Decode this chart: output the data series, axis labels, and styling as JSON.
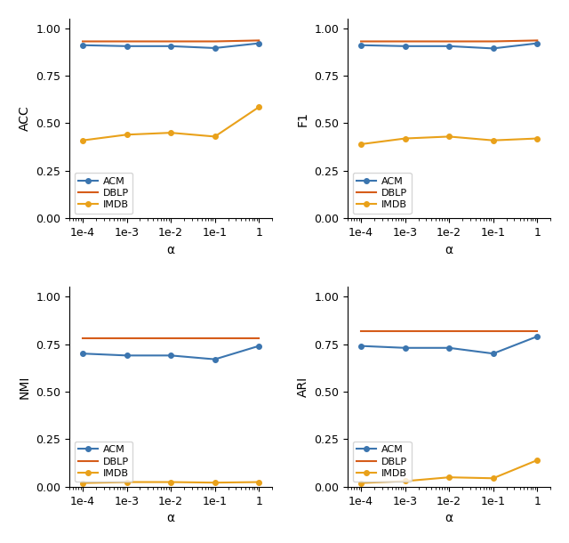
{
  "x_labels": [
    "1e-4",
    "1e-3",
    "1e-2",
    "1e-1",
    "1"
  ],
  "x_values": [
    0.0001,
    0.001,
    0.01,
    0.1,
    1
  ],
  "ACC": {
    "ACM": [
      0.91,
      0.905,
      0.905,
      0.895,
      0.92
    ],
    "DBLP": [
      0.93,
      0.93,
      0.93,
      0.93,
      0.935
    ],
    "IMDB": [
      0.41,
      0.44,
      0.45,
      0.43,
      0.585
    ]
  },
  "F1": {
    "ACM": [
      0.91,
      0.905,
      0.905,
      0.893,
      0.92
    ],
    "DBLP": [
      0.93,
      0.93,
      0.93,
      0.93,
      0.935
    ],
    "IMDB": [
      0.39,
      0.42,
      0.43,
      0.41,
      0.42
    ]
  },
  "NMI": {
    "ACM": [
      0.7,
      0.69,
      0.69,
      0.67,
      0.74
    ],
    "DBLP": [
      0.78,
      0.78,
      0.78,
      0.78,
      0.78
    ],
    "IMDB": [
      0.02,
      0.025,
      0.025,
      0.022,
      0.025
    ]
  },
  "ARI": {
    "ACM": [
      0.74,
      0.73,
      0.73,
      0.7,
      0.79
    ],
    "DBLP": [
      0.82,
      0.82,
      0.82,
      0.82,
      0.82
    ],
    "IMDB": [
      0.02,
      0.03,
      0.05,
      0.045,
      0.14
    ]
  },
  "colors": {
    "ACM": "#3b75af",
    "DBLP": "#d55c19",
    "IMDB": "#e9a11a"
  },
  "marker": {
    "ACM": "o",
    "DBLP": "none",
    "IMDB": "o"
  },
  "ylim": [
    0,
    1.05
  ],
  "yticks": [
    0,
    0.25,
    0.5,
    0.75,
    1
  ],
  "xlabel": "α",
  "ylabel_ACC": "ACC",
  "ylabel_F1": "F1",
  "ylabel_NMI": "NMI",
  "ylabel_ARI": "ARI"
}
